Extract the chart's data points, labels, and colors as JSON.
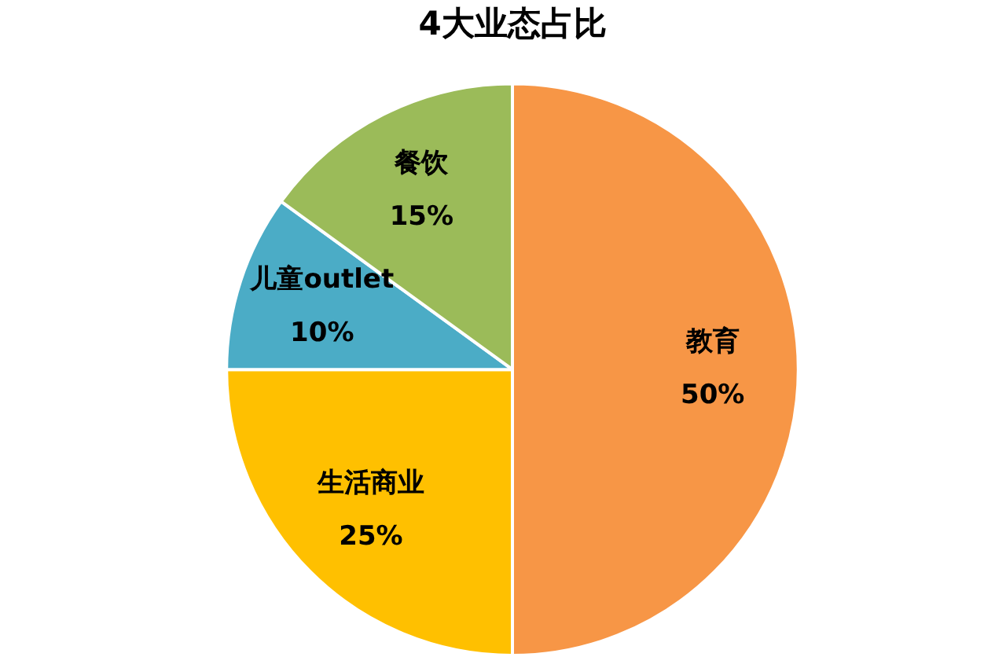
{
  "chart_data": {
    "type": "pie",
    "title": "4大业态占比",
    "categories": [
      "教育",
      "生活商业",
      "儿童outlet",
      "餐饮"
    ],
    "values": [
      50,
      25,
      10,
      15
    ],
    "value_labels": [
      "50%",
      "25%",
      "10%",
      "15%"
    ],
    "colors": [
      "#f79646",
      "#ffc000",
      "#4bacc6",
      "#9bbb59"
    ],
    "legend": false
  }
}
